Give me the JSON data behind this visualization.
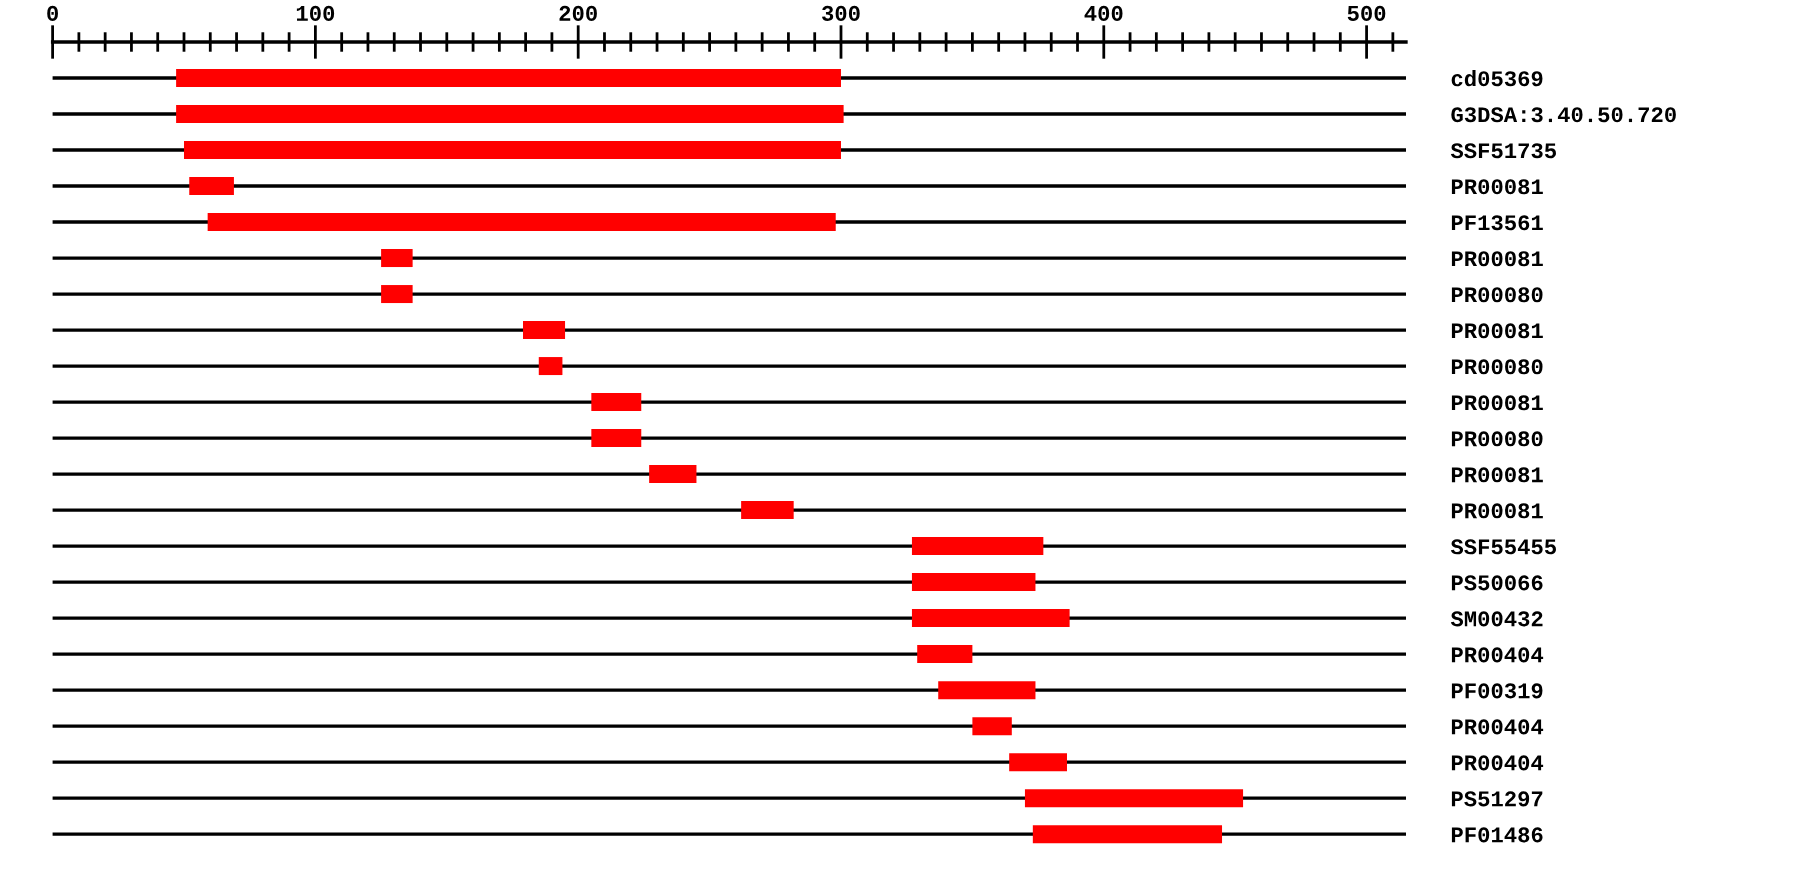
{
  "chart_data": {
    "type": "bar",
    "orientation": "horizontal",
    "categories": [
      "cd05369",
      "G3DSA:3.40.50.720",
      "SSF51735",
      "PR00081",
      "PF13561",
      "PR00081",
      "PR00080",
      "PR00081",
      "PR00080",
      "PR00081",
      "PR00080",
      "PR00081",
      "PR00081",
      "SSF55455",
      "PS50066",
      "SM00432",
      "PR00404",
      "PF00319",
      "PR00404",
      "PR00404",
      "PS51297",
      "PF01486"
    ],
    "base": [
      47,
      47,
      50,
      52,
      59,
      125,
      125,
      179,
      185,
      205,
      205,
      227,
      262,
      327,
      327,
      327,
      329,
      337,
      350,
      364,
      370,
      373
    ],
    "values": [
      253,
      254,
      250,
      17,
      239,
      12,
      12,
      16,
      9,
      19,
      19,
      18,
      20,
      50,
      47,
      60,
      21,
      37,
      15,
      22,
      83,
      72
    ],
    "color": "#ff0000",
    "xlim": [
      0,
      515
    ],
    "xticks": [
      0,
      {
        "value": 10,
        "label": null
      },
      {
        "value": 20,
        "label": null
      },
      {
        "value": 30,
        "label": null
      },
      {
        "value": 40,
        "label": null
      },
      {
        "value": 50,
        "label": null
      },
      {
        "value": 60,
        "label": null
      },
      {
        "value": 70,
        "label": null
      },
      {
        "value": 80,
        "label": null
      },
      {
        "value": 90,
        "label": null
      },
      100,
      {
        "value": 110,
        "label": null
      },
      {
        "value": 120,
        "label": null
      },
      {
        "value": 130,
        "label": null
      },
      {
        "value": 140,
        "label": null
      },
      {
        "value": 150,
        "label": null
      },
      {
        "value": 160,
        "label": null
      },
      {
        "value": 170,
        "label": null
      },
      {
        "value": 180,
        "label": null
      },
      {
        "value": 190,
        "label": null
      },
      200,
      {
        "value": 210,
        "label": null
      },
      {
        "value": 220,
        "label": null
      },
      {
        "value": 230,
        "label": null
      },
      {
        "value": 240,
        "label": null
      },
      {
        "value": 250,
        "label": null
      },
      {
        "value": 260,
        "label": null
      },
      {
        "value": 270,
        "label": null
      },
      {
        "value": 280,
        "label": null
      },
      {
        "value": 290,
        "label": null
      },
      300,
      {
        "value": 310,
        "label": null
      },
      {
        "value": 320,
        "label": null
      },
      {
        "value": 330,
        "label": null
      },
      {
        "value": 340,
        "label": null
      },
      {
        "value": 350,
        "label": null
      },
      {
        "value": 360,
        "label": null
      },
      {
        "value": 370,
        "label": null
      },
      {
        "value": 380,
        "label": null
      },
      {
        "value": 390,
        "label": null
      },
      400,
      {
        "value": 410,
        "label": null
      },
      {
        "value": 420,
        "label": null
      },
      {
        "value": 430,
        "label": null
      },
      {
        "value": 440,
        "label": null
      },
      {
        "value": 450,
        "label": null
      },
      {
        "value": 460,
        "label": null
      },
      {
        "value": 470,
        "label": null
      },
      {
        "value": 480,
        "label": null
      },
      {
        "value": 490,
        "label": null
      },
      500,
      {
        "value": 510,
        "label": null
      }
    ],
    "grid": "y"
  }
}
